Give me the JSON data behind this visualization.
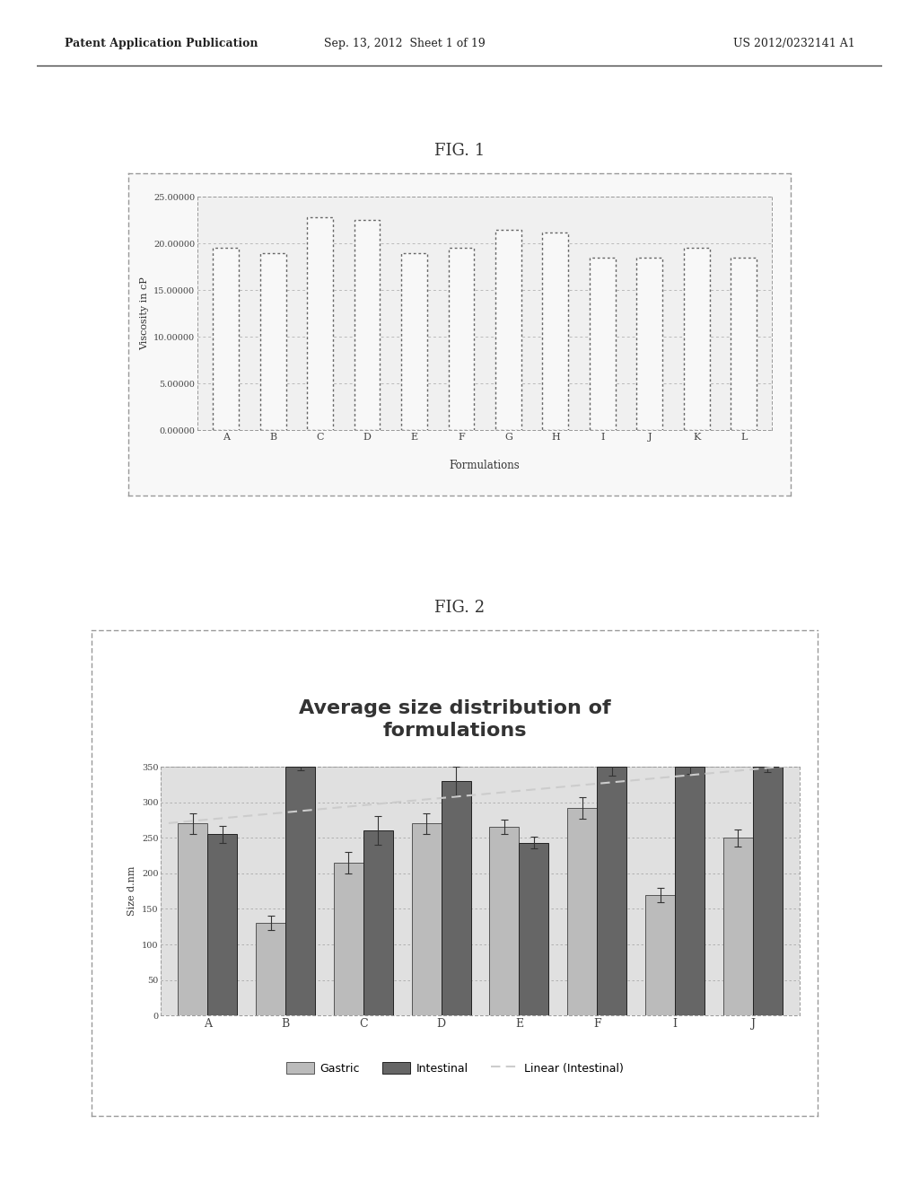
{
  "fig1": {
    "title": "FIG. 1",
    "xlabel": "Formulations",
    "ylabel": "Viscosity in cP",
    "categories": [
      "A",
      "B",
      "C",
      "D",
      "E",
      "F",
      "G",
      "H",
      "I",
      "J",
      "K",
      "L"
    ],
    "values": [
      19.5,
      19.0,
      22.8,
      22.5,
      19.0,
      19.5,
      21.5,
      21.2,
      18.5,
      18.5,
      19.5,
      18.5
    ],
    "ylim": [
      0,
      25
    ],
    "yticks": [
      0,
      5,
      10,
      15,
      20,
      25
    ],
    "ytick_labels": [
      "0.00000",
      "5.00000",
      "10.00000",
      "15.00000",
      "20.00000",
      "25.00000"
    ],
    "bar_color": "#f8f8f8",
    "bar_edgecolor": "#666666",
    "bar_linewidth": 1.0,
    "grid_color": "#bbbbbb",
    "bg_color": "#f0f0f0"
  },
  "fig2": {
    "title_line1": "Average size distribution of",
    "title_line2": "formulations",
    "ylabel": "Size d.nm",
    "categories": [
      "A",
      "B",
      "C",
      "D",
      "E",
      "F",
      "I",
      "J"
    ],
    "gastric": [
      270,
      130,
      215,
      270,
      265,
      292,
      170,
      250
    ],
    "intestinal": [
      255,
      350,
      260,
      330,
      243,
      350,
      350,
      350
    ],
    "gastric_err": [
      15,
      10,
      15,
      15,
      10,
      15,
      10,
      12
    ],
    "intestinal_err": [
      12,
      5,
      20,
      20,
      8,
      12,
      10,
      8
    ],
    "ylim": [
      0,
      350
    ],
    "yticks": [
      0,
      50,
      100,
      150,
      200,
      250,
      300,
      350
    ],
    "gastric_color": "#bbbbbb",
    "intestinal_color": "#666666",
    "bg_color": "#e0e0e0",
    "legend_labels": [
      "Gastric",
      "Intestinal",
      "Linear (Intestinal)"
    ],
    "linear_color": "#cccccc"
  },
  "header_left": "Patent Application Publication",
  "header_center": "Sep. 13, 2012  Sheet 1 of 19",
  "header_right": "US 2012/0232141 A1",
  "bg_page": "#ffffff"
}
